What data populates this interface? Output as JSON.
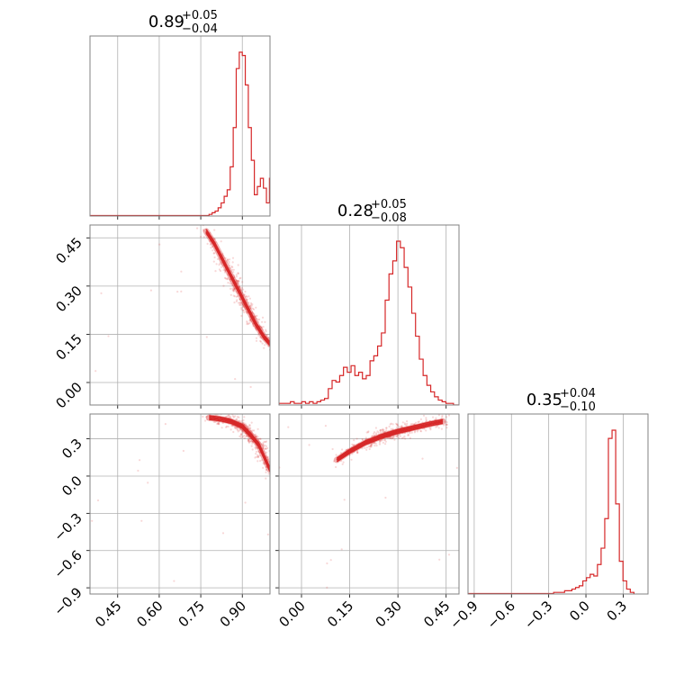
{
  "colors": {
    "series": "#d62728",
    "grid": "#b0b0b0",
    "frame": "#808080"
  },
  "chart_data": {
    "type": "corner",
    "grid": true,
    "parameters": [
      {
        "median": "0.89",
        "err_plus": "+0.05",
        "err_minus": "−0.04",
        "range": [
          0.35,
          1.0
        ],
        "ticks": [
          0.45,
          0.6,
          0.75,
          0.9
        ],
        "tick_labels": [
          "0.45",
          "0.60",
          "0.75",
          "0.90"
        ]
      },
      {
        "median": "0.28",
        "err_plus": "+0.05",
        "err_minus": "−0.08",
        "range": [
          -0.07,
          0.49
        ],
        "ticks": [
          0.0,
          0.15,
          0.3,
          0.45
        ],
        "tick_labels": [
          "0.00",
          "0.15",
          "0.30",
          "0.45"
        ]
      },
      {
        "median": "0.35",
        "err_plus": "+0.04",
        "err_minus": "−0.10",
        "range": [
          -0.95,
          0.5
        ],
        "ticks": [
          -0.9,
          -0.6,
          -0.3,
          0.0,
          0.3
        ],
        "tick_labels": [
          "−0.9",
          "−0.6",
          "−0.3",
          "0.0",
          "0.3"
        ]
      }
    ],
    "histograms": [
      {
        "param": 0,
        "bins_lo": 0.78,
        "bin_width": 0.0109,
        "counts": [
          1,
          2,
          3,
          5,
          8,
          12,
          16,
          30,
          54,
          90,
          100,
          98,
          80,
          54,
          34,
          13,
          18,
          23,
          17,
          8,
          23,
          14,
          2
        ]
      },
      {
        "param": 1,
        "bins_lo": -0.07,
        "bin_width": 0.0118,
        "counts": [
          1,
          1,
          1,
          2,
          1,
          1,
          2,
          1,
          2,
          1,
          2,
          3,
          4,
          10,
          15,
          14,
          18,
          23,
          20,
          24,
          18,
          20,
          16,
          18,
          27,
          30,
          36,
          44,
          64,
          80,
          88,
          100,
          96,
          84,
          72,
          56,
          42,
          28,
          18,
          12,
          8,
          5,
          3,
          2,
          1,
          1,
          0,
          0
        ]
      },
      {
        "param": 2,
        "bins_lo": -0.26,
        "bin_width": 0.0294,
        "counts": [
          1,
          1,
          1,
          2,
          2,
          3,
          4,
          5,
          8,
          10,
          12,
          11,
          18,
          28,
          46,
          95,
          100,
          55,
          20,
          8,
          3,
          1
        ]
      }
    ],
    "scatter_2d": [
      {
        "x_param": 0,
        "y_param": 1,
        "ridge_x": [
          0.77,
          0.8,
          0.83,
          0.86,
          0.89,
          0.92,
          0.95,
          0.98,
          1.0
        ],
        "ridge_y": [
          0.47,
          0.43,
          0.38,
          0.33,
          0.28,
          0.23,
          0.18,
          0.14,
          0.12
        ]
      },
      {
        "x_param": 0,
        "y_param": 2,
        "ridge_x": [
          0.78,
          0.82,
          0.86,
          0.9,
          0.93,
          0.96,
          0.98,
          1.0
        ],
        "ridge_y": [
          0.47,
          0.46,
          0.44,
          0.4,
          0.33,
          0.25,
          0.15,
          0.05
        ]
      },
      {
        "x_param": 1,
        "y_param": 2,
        "ridge_x": [
          0.11,
          0.15,
          0.2,
          0.25,
          0.3,
          0.35,
          0.4,
          0.44
        ],
        "ridge_y": [
          0.13,
          0.2,
          0.27,
          0.32,
          0.36,
          0.39,
          0.42,
          0.44
        ]
      }
    ]
  }
}
